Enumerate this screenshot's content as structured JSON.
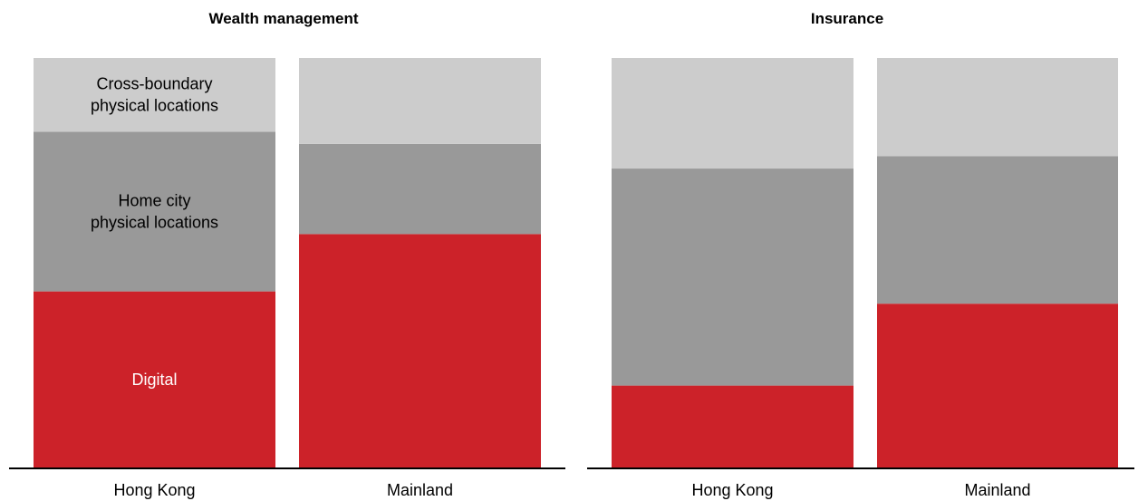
{
  "colors": {
    "digital": "#cc2229",
    "home_city": "#999999",
    "cross_boundary": "#cccccc",
    "axis": "#000000",
    "label_dark": "#000000",
    "label_light": "#ffffff"
  },
  "chart_data": [
    {
      "type": "bar",
      "stacked": true,
      "normalized_to_percent": true,
      "title": "Wealth management",
      "categories": [
        "Hong Kong",
        "Mainland"
      ],
      "series": [
        {
          "name": "Digital",
          "values": [
            43,
            57
          ]
        },
        {
          "name": "Home city physical locations",
          "values": [
            39,
            22
          ]
        },
        {
          "name": "Cross-boundary physical locations",
          "values": [
            18,
            21
          ]
        }
      ],
      "ylim": [
        0,
        100
      ],
      "grid": false,
      "xlabel": "",
      "ylabel": "",
      "segment_labels": [
        {
          "category": "Hong Kong",
          "series": "Digital",
          "lines": [
            "Digital"
          ]
        },
        {
          "category": "Hong Kong",
          "series": "Home city physical locations",
          "lines": [
            "Home city",
            "physical locations"
          ]
        },
        {
          "category": "Hong Kong",
          "series": "Cross-boundary physical locations",
          "lines": [
            "Cross-boundary",
            "physical locations"
          ]
        }
      ]
    },
    {
      "type": "bar",
      "stacked": true,
      "normalized_to_percent": true,
      "title": "Insurance",
      "categories": [
        "Hong Kong",
        "Mainland"
      ],
      "series": [
        {
          "name": "Digital",
          "values": [
            20,
            40
          ]
        },
        {
          "name": "Home city physical locations",
          "values": [
            53,
            36
          ]
        },
        {
          "name": "Cross-boundary physical locations",
          "values": [
            27,
            24
          ]
        }
      ],
      "ylim": [
        0,
        100
      ],
      "grid": false,
      "xlabel": "",
      "ylabel": "",
      "segment_labels": []
    }
  ]
}
